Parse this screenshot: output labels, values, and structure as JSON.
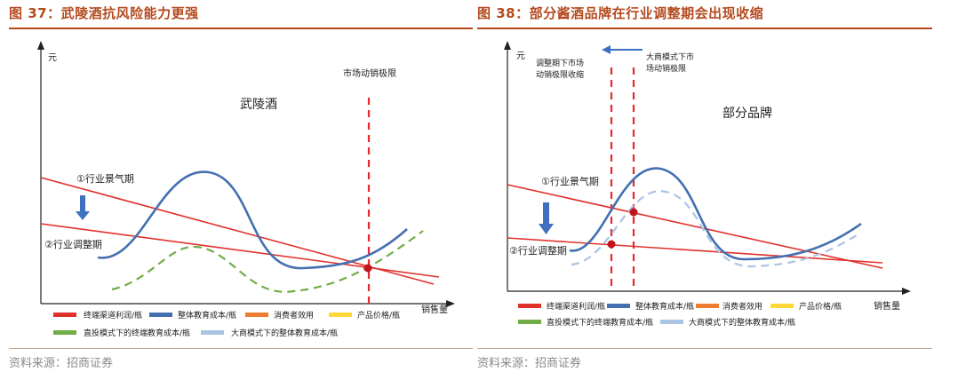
{
  "colors": {
    "title": "#b44a1e",
    "red": "#e0312b",
    "dark_red": "#c0141b",
    "blue": "#4470b0",
    "light_blue": "#a9c4e4",
    "orange": "#ee7d31",
    "yellow": "#fdd837",
    "green": "#70ad47",
    "dashed_red": "#e8272f",
    "arrow_blue": "#3f6fbf"
  },
  "left": {
    "title": "图 37：武陵酒抗风险能力更强",
    "y_unit": "元",
    "x_unit": "销售量",
    "brand_label": "武陵酒",
    "marker_label": "市场动销极限",
    "phase1_label": "①行业景气期",
    "phase2_label": "②行业调整期",
    "legend": [
      "终端渠道利润/瓶",
      "整体教育成本/瓶",
      "消费者效用",
      "产品价格/瓶",
      "直投模式下的终端教育成本/瓶",
      "大商模式下的整体教育成本/瓶"
    ],
    "source": "资料来源：招商证券"
  },
  "right": {
    "title": "图 38：部分酱酒品牌在行业调整期会出现收缩",
    "y_unit": "元",
    "x_unit": "销售量",
    "brand_label": "部分品牌",
    "marker1_label_line1": "调整期下市场",
    "marker1_label_line2": "动销极限收缩",
    "marker2_label_line1": "大商模式下市",
    "marker2_label_line2": "场动销极限",
    "phase1_label": "①行业景气期",
    "phase2_label": "②行业调整期",
    "legend": [
      "终端渠道利润/瓶",
      "整体教育成本/瓶",
      "消费者效用",
      "产品价格/瓶",
      "直投模式下的终端教育成本/瓶",
      "大商模式下的整体教育成本/瓶"
    ],
    "source": "资料来源：招商证券"
  },
  "chart_data": [
    {
      "type": "line",
      "title": "武陵酒抗风险能力更强",
      "xlabel": "销售量",
      "ylabel": "元",
      "annotations": [
        "武陵酒",
        "市场动销极限",
        "①行业景气期",
        "②行业调整期"
      ],
      "series": [
        {
          "name": "终端渠道利润/瓶",
          "style": "line",
          "x": [
            0,
            10
          ],
          "y": [
            5.4,
            0.6
          ]
        },
        {
          "name": "终端渠道利润/瓶",
          "style": "line",
          "x": [
            0,
            10
          ],
          "y": [
            3.8,
            1.2
          ]
        },
        {
          "name": "整体教育成本/瓶",
          "style": "line",
          "x": [
            1.5,
            4.2,
            6.5,
            9.4
          ],
          "y": [
            2.0,
            6.0,
            1.4,
            3.2
          ]
        },
        {
          "name": "直投模式下的终端教育成本/瓶",
          "style": "dashed",
          "x": [
            1.8,
            4.0,
            6.4,
            9.8
          ],
          "y": [
            0.4,
            2.5,
            0.6,
            3.0
          ]
        }
      ],
      "vlines": [
        {
          "label": "市场动销极限",
          "x": 8.1
        }
      ]
    },
    {
      "type": "line",
      "title": "部分酱酒品牌在行业调整期会出现收缩",
      "xlabel": "销售量",
      "ylabel": "元",
      "annotations": [
        "部分品牌",
        "调整期下市场动销极限收缩",
        "大商模式下市场动销极限",
        "①行业景气期",
        "②行业调整期"
      ],
      "series": [
        {
          "name": "终端渠道利润/瓶",
          "style": "line",
          "x": [
            0,
            10
          ],
          "y": [
            5.1,
            0.7
          ]
        },
        {
          "name": "终端渠道利润/瓶",
          "style": "line",
          "x": [
            0,
            10
          ],
          "y": [
            2.9,
            1.6
          ]
        },
        {
          "name": "整体教育成本/瓶",
          "style": "line",
          "x": [
            1.6,
            3.9,
            6.2,
            9.5
          ],
          "y": [
            2.2,
            6.0,
            1.7,
            3.3
          ]
        },
        {
          "name": "大商模式下的整体教育成本/瓶",
          "style": "dashed",
          "x": [
            1.6,
            4.2,
            6.5,
            9.4
          ],
          "y": [
            1.4,
            5.0,
            1.2,
            3.0
          ]
        }
      ],
      "vlines": [
        {
          "label": "调整期下市场动销极限收缩",
          "x": 2.5
        },
        {
          "label": "大商模式下市场动销极限",
          "x": 3.2
        }
      ]
    }
  ]
}
